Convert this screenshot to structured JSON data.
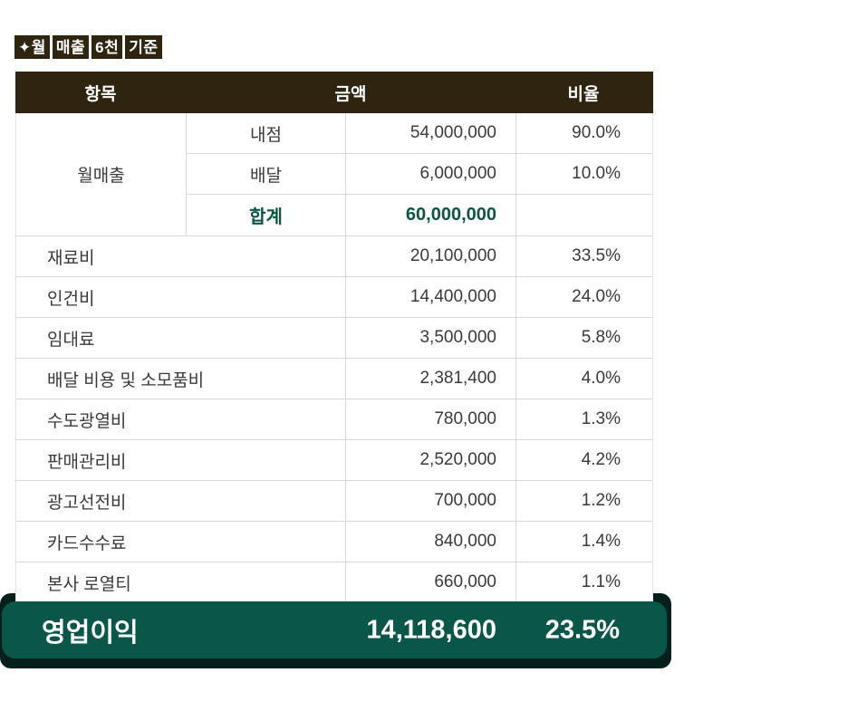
{
  "title": {
    "text": "✦월 매출 6천 기준",
    "parts": [
      "✦월",
      "매출",
      "6천",
      "기준"
    ]
  },
  "table": {
    "headers": [
      "항목",
      "금액",
      "비율"
    ],
    "sales": {
      "label": "월매출",
      "rows": [
        {
          "sub": "내점",
          "amount": "54,000,000",
          "ratio": "90.0%"
        },
        {
          "sub": "배달",
          "amount": "6,000,000",
          "ratio": "10.0%"
        },
        {
          "sub": "합계",
          "amount": "60,000,000",
          "ratio": ""
        }
      ]
    },
    "expenses": [
      {
        "label": "재료비",
        "amount": "20,100,000",
        "ratio": "33.5%"
      },
      {
        "label": "인건비",
        "amount": "14,400,000",
        "ratio": "24.0%"
      },
      {
        "label": "임대료",
        "amount": "3,500,000",
        "ratio": "5.8%"
      },
      {
        "label": "배달 비용 및 소모품비",
        "amount": "2,381,400",
        "ratio": "4.0%"
      },
      {
        "label": "수도광열비",
        "amount": "780,000",
        "ratio": "1.3%"
      },
      {
        "label": "판매관리비",
        "amount": "2,520,000",
        "ratio": "4.2%"
      },
      {
        "label": "광고선전비",
        "amount": "700,000",
        "ratio": "1.2%"
      },
      {
        "label": "카드수수료",
        "amount": "840,000",
        "ratio": "1.4%"
      },
      {
        "label": "본사 로열티",
        "amount": "660,000",
        "ratio": "1.1%"
      }
    ]
  },
  "summary": {
    "label": "영업이익",
    "amount": "14,118,600",
    "ratio": "23.5%"
  },
  "colors": {
    "header_bg": "#2E240F",
    "accent_green": "#0A574A",
    "total_text_green": "#0D5646",
    "bar_shadow": "#04201B",
    "row_border": "#D9D9D9",
    "body_text": "#3A3A3A"
  },
  "chart_data": {
    "type": "table",
    "title": "월 매출 6천 기준",
    "columns": [
      "항목",
      "금액",
      "비율"
    ],
    "rows": [
      [
        "월매출 내점",
        54000000,
        "90.0%"
      ],
      [
        "월매출 배달",
        6000000,
        "10.0%"
      ],
      [
        "월매출 합계",
        60000000,
        ""
      ],
      [
        "재료비",
        20100000,
        "33.5%"
      ],
      [
        "인건비",
        14400000,
        "24.0%"
      ],
      [
        "임대료",
        3500000,
        "5.8%"
      ],
      [
        "배달 비용 및 소모품비",
        2381400,
        "4.0%"
      ],
      [
        "수도광열비",
        780000,
        "1.3%"
      ],
      [
        "판매관리비",
        2520000,
        "4.2%"
      ],
      [
        "광고선전비",
        700000,
        "1.2%"
      ],
      [
        "카드수수료",
        840000,
        "1.4%"
      ],
      [
        "본사 로열티",
        660000,
        "1.1%"
      ],
      [
        "영업이익",
        14118600,
        "23.5%"
      ]
    ]
  }
}
